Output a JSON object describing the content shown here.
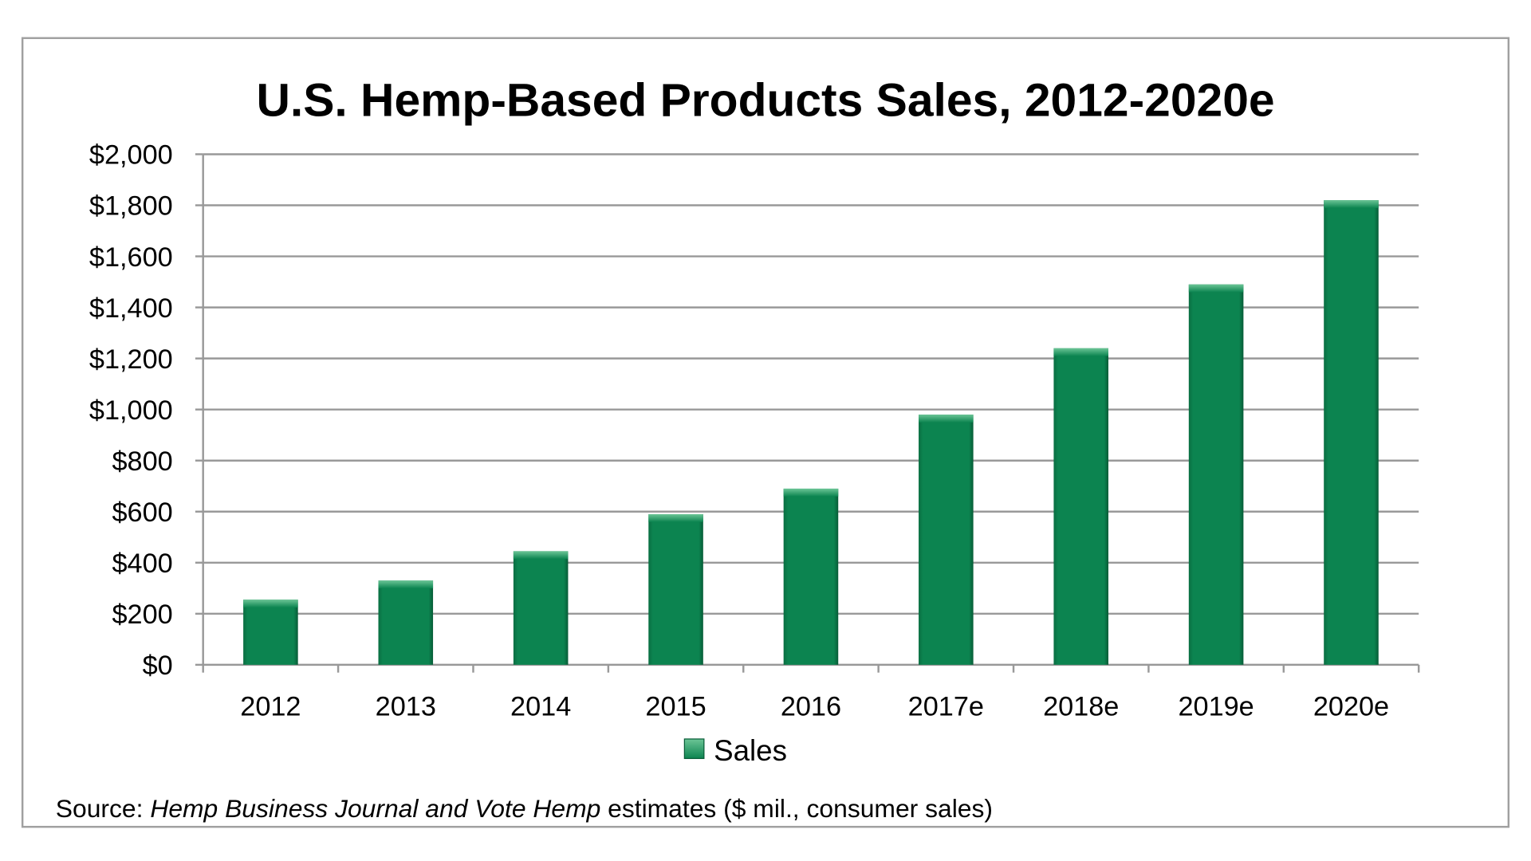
{
  "chart_data": {
    "type": "bar",
    "title": "U.S. Hemp-Based Products Sales, 2012-2020e",
    "categories": [
      "2012",
      "2013",
      "2014",
      "2015",
      "2016",
      "2017e",
      "2018e",
      "2019e",
      "2020e"
    ],
    "series": [
      {
        "name": "Sales",
        "values": [
          255,
          330,
          445,
          590,
          690,
          980,
          1240,
          1490,
          1820
        ],
        "color": "#0c8450"
      }
    ],
    "ylim": [
      0,
      2000
    ],
    "yticks": [
      0,
      200,
      400,
      600,
      800,
      1000,
      1200,
      1400,
      1600,
      1800,
      2000
    ],
    "ytick_labels": [
      "$0",
      "$200",
      "$400",
      "$600",
      "$800",
      "$1,000",
      "$1,200",
      "$1,400",
      "$1,600",
      "$1,800",
      "$2,000"
    ],
    "grid": true,
    "legend": "bottom",
    "source": {
      "prefix": "Source: ",
      "italic": "Hemp Business Journal and Vote Hemp",
      "suffix": " estimates ($ mil., consumer sales)"
    }
  }
}
